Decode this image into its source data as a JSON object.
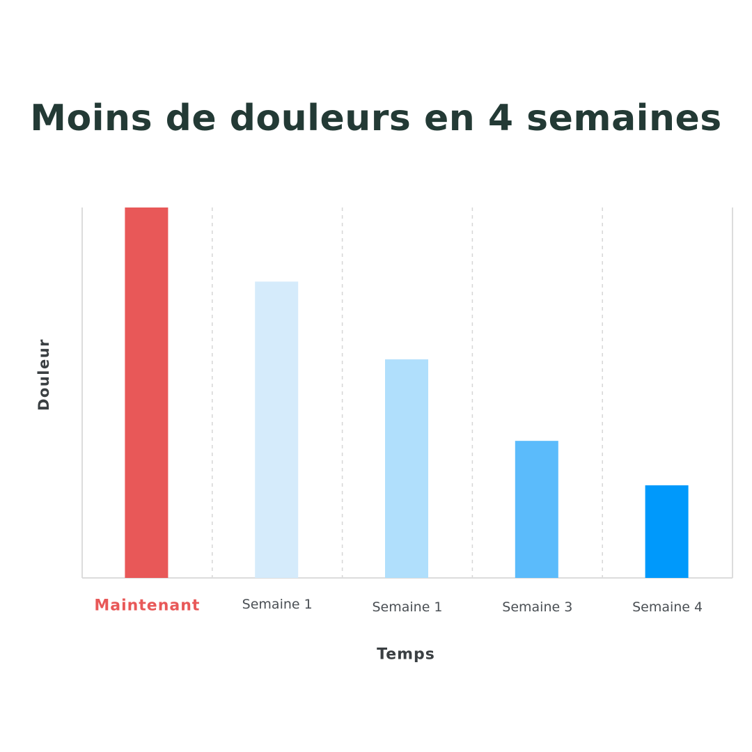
{
  "title": "Moins de douleurs en 4 semaines",
  "chart_data": {
    "type": "bar",
    "title": "Moins de douleurs en 4 semaines",
    "xlabel": "Temps",
    "ylabel": "Douleur",
    "categories": [
      "Maintenant",
      "Semaine 1",
      "Semaine 1",
      "Semaine 3",
      "Semaine 4"
    ],
    "values": [
      100,
      80,
      59,
      37,
      25
    ],
    "ylim": [
      0,
      100
    ],
    "colors": [
      "#e85858",
      "#d5ebfb",
      "#b0dffc",
      "#5bbbfb",
      "#0099fb"
    ],
    "highlight_color": "#e85858",
    "axis_color": "#dcdcdc",
    "grid": "vertical-dashed",
    "legend": "none"
  }
}
